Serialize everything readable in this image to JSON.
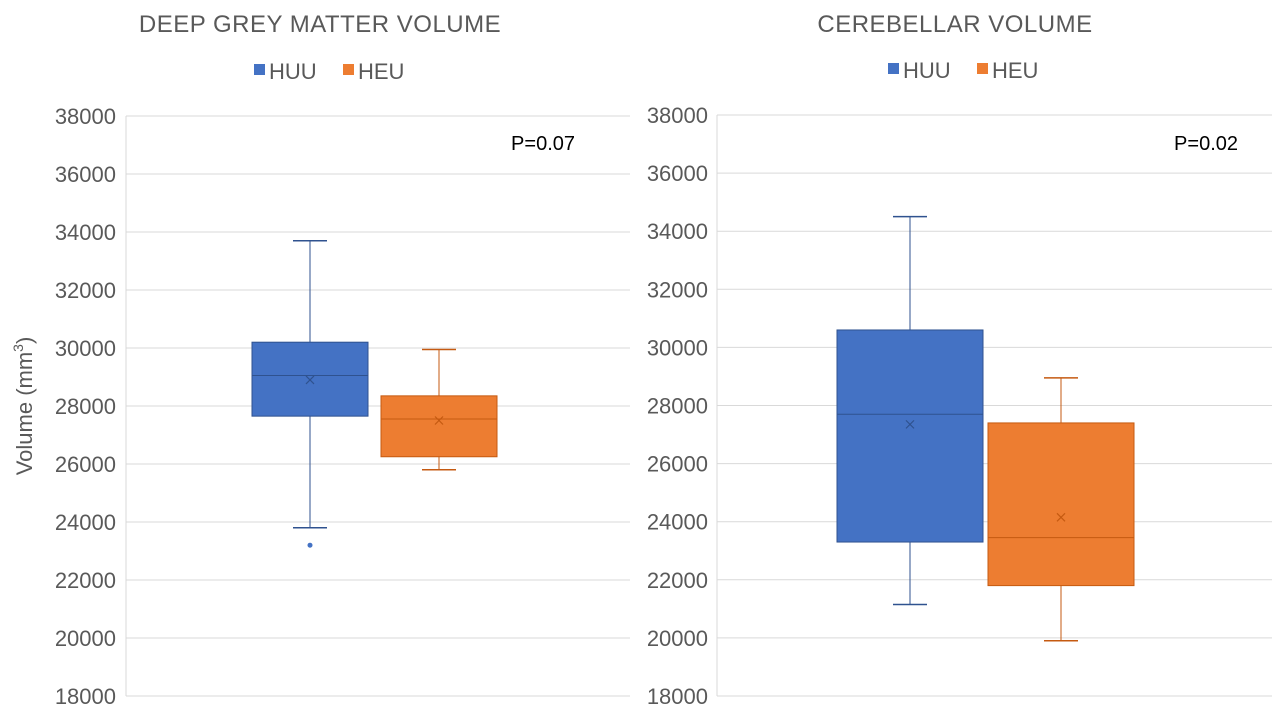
{
  "colors": {
    "HUU": "#4472c4",
    "HEU": "#ed7d31",
    "HUU_line": "#2f528f",
    "HEU_line": "#c55a11"
  },
  "ylabel_main": "Volume (mm",
  "ylabel_sup": "3",
  "ylabel_close": ")",
  "chart_data": [
    {
      "type": "box",
      "title": "DEEP GREY MATTER VOLUME",
      "annotation": "P=0.07",
      "ylim": [
        18000,
        38000
      ],
      "yticks": [
        18000,
        20000,
        22000,
        24000,
        26000,
        28000,
        30000,
        32000,
        34000,
        36000,
        38000
      ],
      "legend": [
        "HUU",
        "HEU"
      ],
      "legend_position": "top",
      "grid": true,
      "series": [
        {
          "name": "HUU",
          "min": 23800,
          "q1": 27650,
          "median": 29050,
          "q3": 30200,
          "max": 33700,
          "mean": 28900,
          "outliers": [
            23200
          ]
        },
        {
          "name": "HEU",
          "min": 25800,
          "q1": 26250,
          "median": 27550,
          "q3": 28350,
          "max": 29950,
          "mean": 27500,
          "outliers": []
        }
      ]
    },
    {
      "type": "box",
      "title": "CEREBELLAR VOLUME",
      "annotation": "P=0.02",
      "ylim": [
        18000,
        38000
      ],
      "yticks": [
        18000,
        20000,
        22000,
        24000,
        26000,
        28000,
        30000,
        32000,
        34000,
        36000,
        38000
      ],
      "legend": [
        "HUU",
        "HEU"
      ],
      "legend_position": "top",
      "grid": true,
      "series": [
        {
          "name": "HUU",
          "min": 21150,
          "q1": 23300,
          "median": 27700,
          "q3": 30600,
          "max": 34500,
          "mean": 27350,
          "outliers": []
        },
        {
          "name": "HEU",
          "min": 19900,
          "q1": 21800,
          "median": 23450,
          "q3": 27400,
          "max": 28950,
          "mean": 24150,
          "outliers": []
        }
      ]
    }
  ]
}
